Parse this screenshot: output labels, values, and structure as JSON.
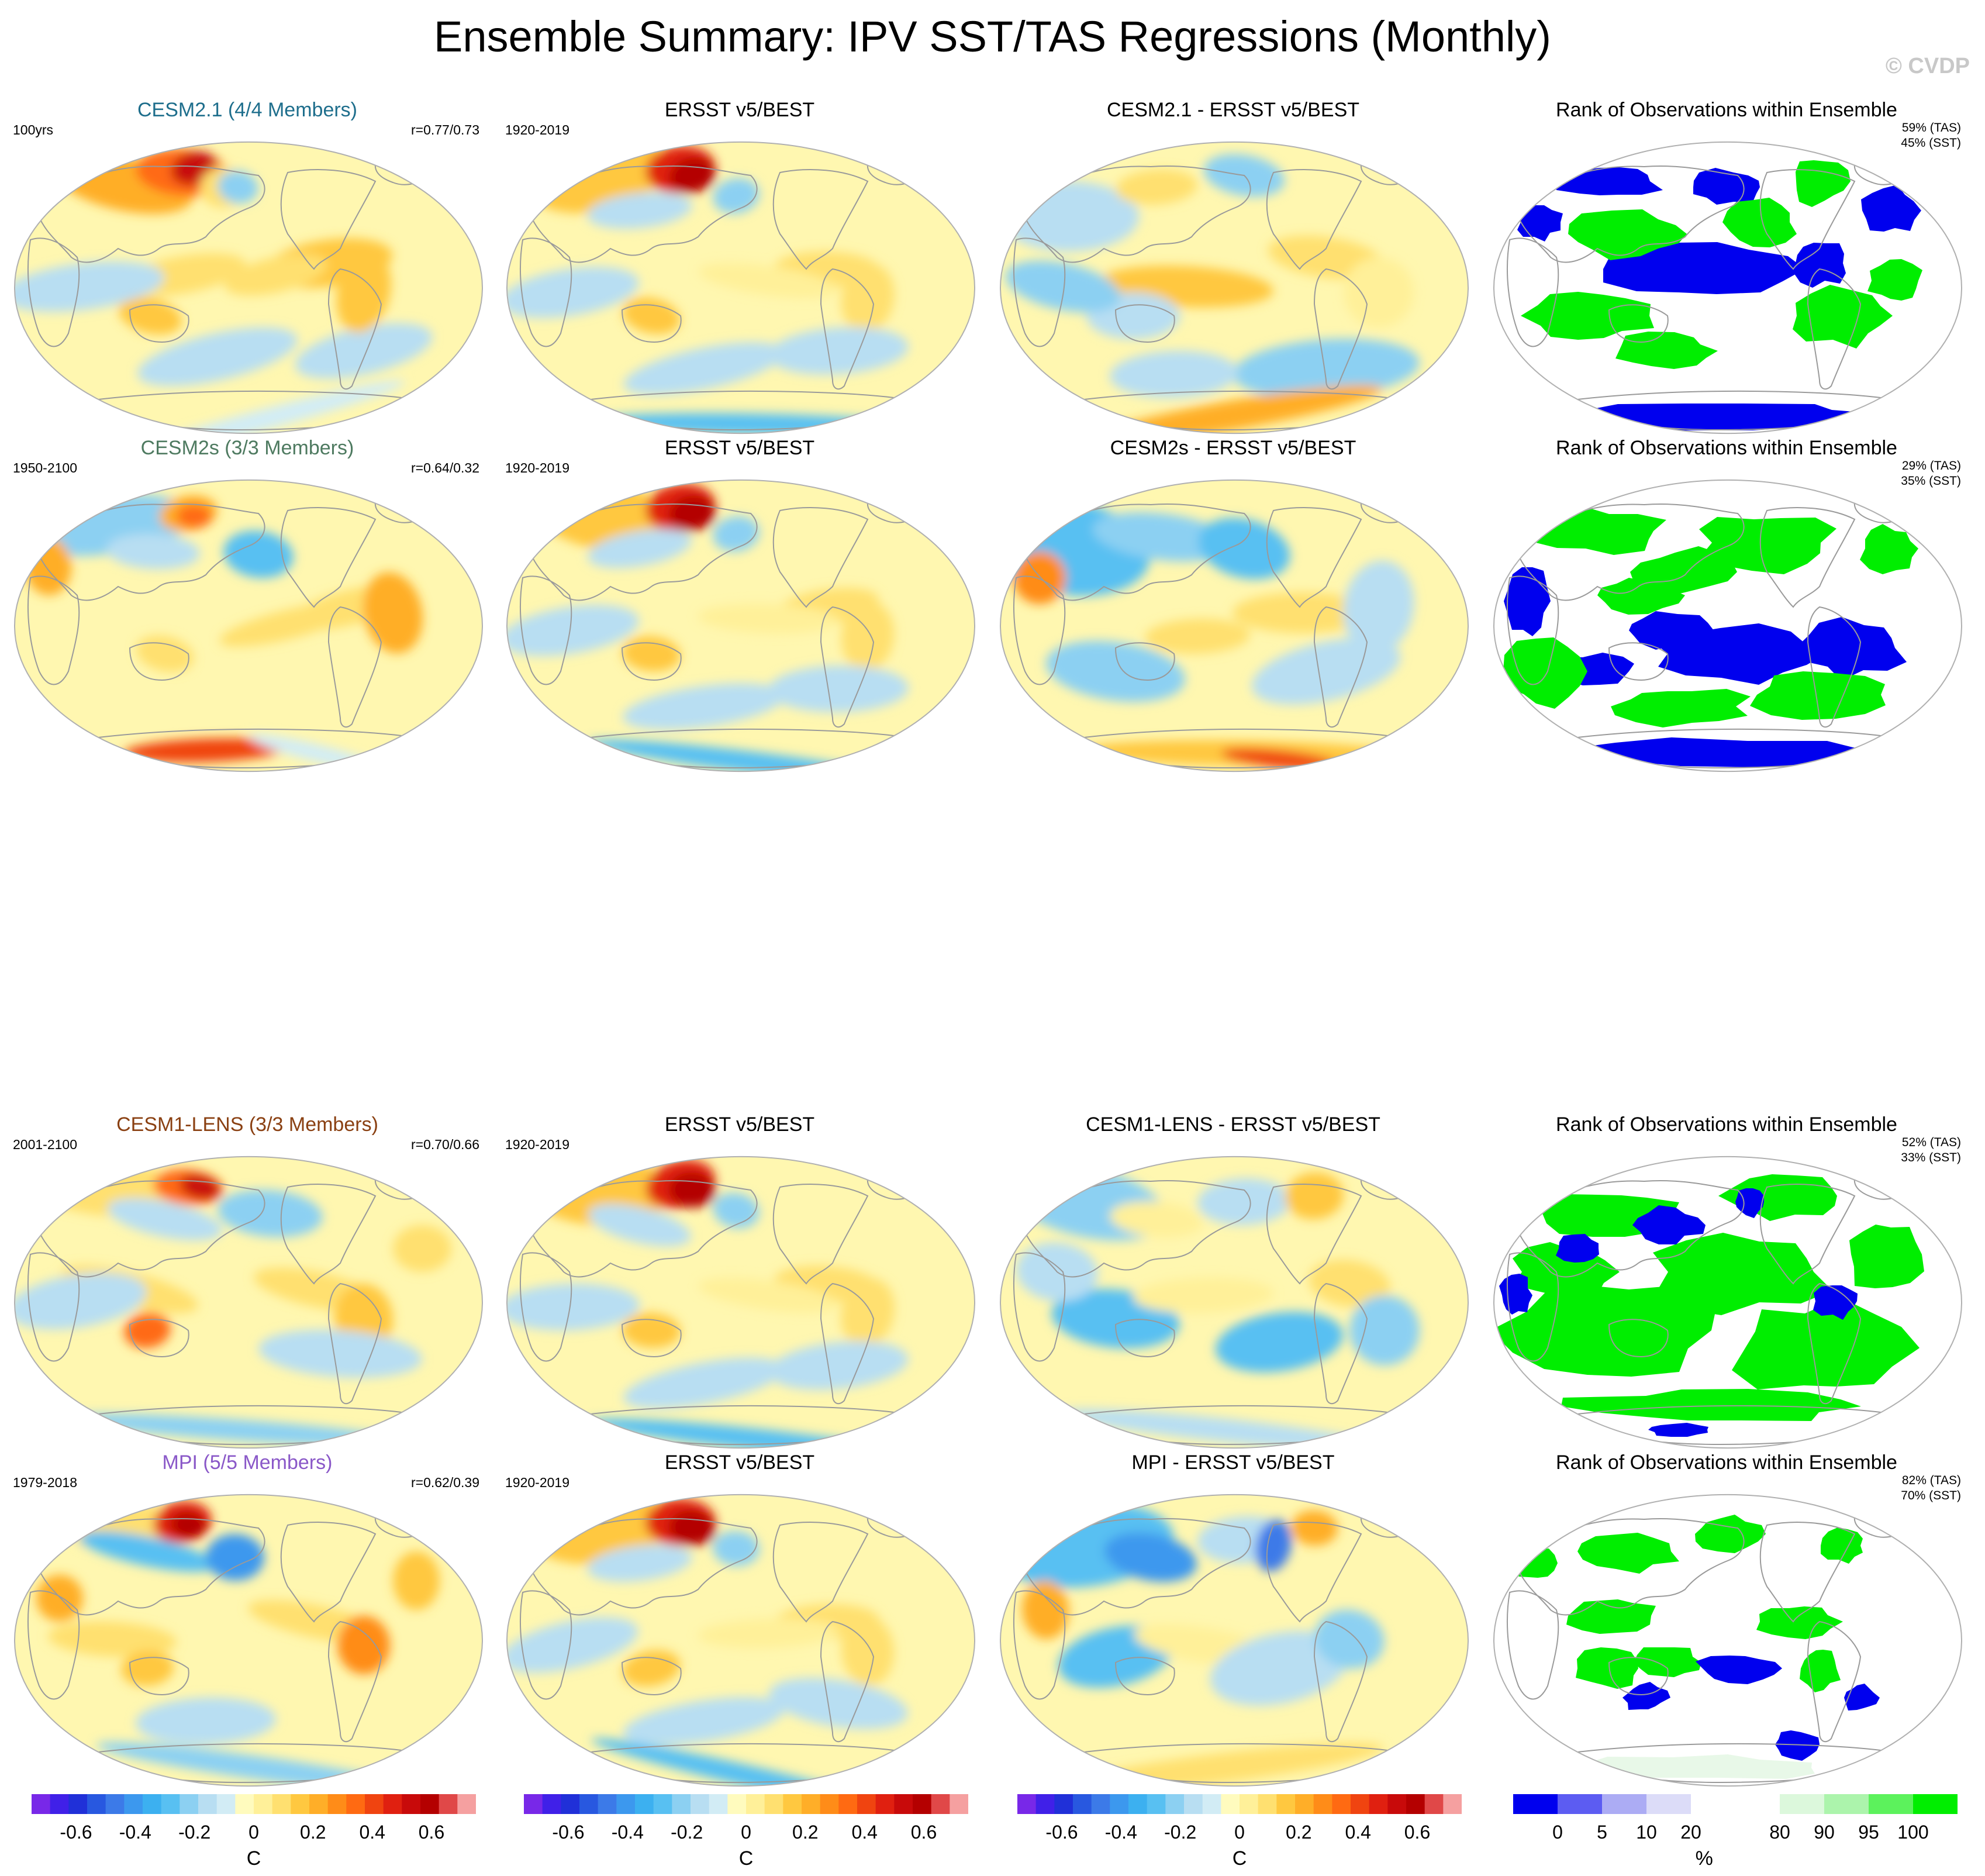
{
  "title": "Ensemble Summary: IPV SST/TAS Regressions (Monthly)",
  "watermark": "© CVDP",
  "colors": {
    "model_cesm21": "#1e6e8c",
    "model_cesm2s": "#4e7a60",
    "model_cesm1": "#8a4012",
    "model_mpi": "#8a58c8",
    "rank_low": "#0000ee",
    "rank_high": "#00ee00",
    "ocean_base": "#fff7b0",
    "land_outline": "#9a9a9a"
  },
  "rows": [
    {
      "model": {
        "title": "CESM2.1 (4/4 Members)",
        "period": "100yrs",
        "corr": "r=0.77/0.73",
        "pattern": "cesm21"
      },
      "obs": {
        "title": "ERSST v5/BEST",
        "period": "1920-2019",
        "pattern": "obs"
      },
      "diff": {
        "title": "CESM2.1 - ERSST v5/BEST",
        "pattern": "diff1"
      },
      "rank": {
        "title": "Rank of Observations within Ensemble",
        "tas": "59% (TAS)",
        "sst": "45% (SST)",
        "pattern": "rank1"
      }
    },
    {
      "model": {
        "title": "CESM2s (3/3 Members)",
        "period": "1950-2100",
        "corr": "r=0.64/0.32",
        "pattern": "cesm2s"
      },
      "obs": {
        "title": "ERSST v5/BEST",
        "period": "1920-2019",
        "pattern": "obs"
      },
      "diff": {
        "title": "CESM2s - ERSST v5/BEST",
        "pattern": "diff2"
      },
      "rank": {
        "title": "Rank of Observations within Ensemble",
        "tas": "29% (TAS)",
        "sst": "35% (SST)",
        "pattern": "rank2"
      }
    },
    {
      "model": {
        "title": "CESM1-LENS (3/3 Members)",
        "period": "2001-2100",
        "corr": "r=0.70/0.66",
        "pattern": "cesm1"
      },
      "obs": {
        "title": "ERSST v5/BEST",
        "period": "1920-2019",
        "pattern": "obs"
      },
      "diff": {
        "title": "CESM1-LENS - ERSST v5/BEST",
        "pattern": "diff3"
      },
      "rank": {
        "title": "Rank of Observations within Ensemble",
        "tas": "52% (TAS)",
        "sst": "33% (SST)",
        "pattern": "rank3"
      }
    },
    {
      "model": {
        "title": "MPI (5/5 Members)",
        "period": "1979-2018",
        "corr": "r=0.62/0.39",
        "pattern": "mpi"
      },
      "obs": {
        "title": "ERSST v5/BEST",
        "period": "1920-2019",
        "pattern": "obs"
      },
      "diff": {
        "title": "MPI - ERSST v5/BEST",
        "pattern": "diff4"
      },
      "rank": {
        "title": "Rank of Observations within Ensemble",
        "tas": "82% (TAS)",
        "sst": "70% (SST)",
        "pattern": "rank4"
      }
    }
  ],
  "colorbars": {
    "temperature": {
      "labels": [
        "-0.6",
        "-0.4",
        "-0.2",
        "0",
        "0.2",
        "0.4",
        "0.6"
      ],
      "label_values": [
        -0.6,
        -0.4,
        -0.2,
        0,
        0.2,
        0.4,
        0.6
      ],
      "unit": "C",
      "colors": [
        "#7828e8",
        "#4020e8",
        "#2030d8",
        "#2858e0",
        "#3c7ae8",
        "#3c98ee",
        "#3cb0f0",
        "#58c0f2",
        "#8cd0f2",
        "#b8def2",
        "#d2ecf5",
        "#fffbbe",
        "#fff099",
        "#ffe070",
        "#ffc840",
        "#ffae28",
        "#ff8c18",
        "#ff6a12",
        "#f04410",
        "#e02010",
        "#c80a0a",
        "#b40000",
        "#e04848",
        "#f5a0a0"
      ]
    },
    "rank": {
      "labels": [
        "0",
        "5",
        "10",
        "20",
        "80",
        "90",
        "95",
        "100"
      ],
      "label_values": [
        0,
        5,
        10,
        20,
        80,
        90,
        95,
        100
      ],
      "unit": "%",
      "colors": [
        "#0000ee",
        "#5c5cf2",
        "#acacf4",
        "#dcdcf8",
        "#ffffff",
        "#ffffff",
        "#dcf8dc",
        "#acf4ac",
        "#5cf25c",
        "#00ee00"
      ]
    }
  }
}
